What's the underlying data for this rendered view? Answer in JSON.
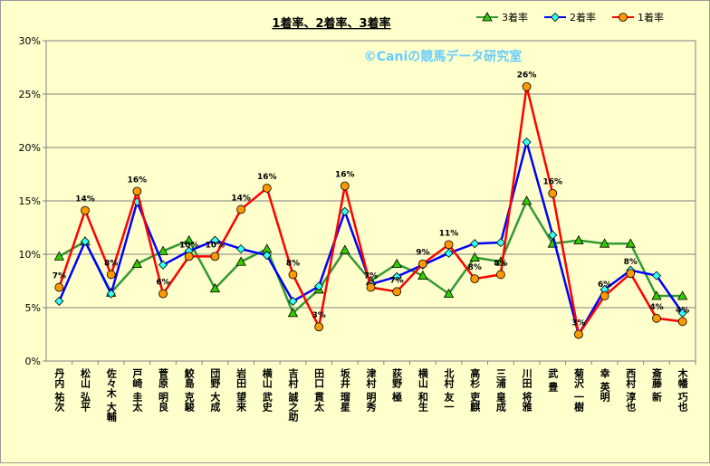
{
  "chart_data": {
    "type": "line",
    "title": "1着率、2着率、3着率",
    "watermark": "©Caniの競馬データ研究室",
    "ylim": [
      0,
      30
    ],
    "yticks": [
      "0%",
      "5%",
      "10%",
      "15%",
      "20%",
      "25%",
      "30%"
    ],
    "categories": [
      "丹内 祐次",
      "松山 弘平",
      "佐々木 大輔",
      "戸崎 圭太",
      "菅原 明良",
      "鮫島 克駿",
      "団野 大成",
      "岩田 望来",
      "横山 武史",
      "吉村 誠之助",
      "田口 貫太",
      "坂井 瑠星",
      "津村 明秀",
      "荻野 極",
      "横山 和生",
      "北村 友一",
      "高杉 吏麒",
      "三浦 皇成",
      "川田 将雅",
      "武 豊",
      "菊沢 一樹",
      "幸 英明",
      "西村 淳也",
      "斎藤 新",
      "木幡 巧也"
    ],
    "series": [
      {
        "name": "3着率",
        "color": "#339933",
        "marker": "triangle",
        "markerColor": "#33cc00",
        "values": [
          9.8,
          11.2,
          6.4,
          9.1,
          10.3,
          11.3,
          6.8,
          9.3,
          10.5,
          4.5,
          6.7,
          10.4,
          7.5,
          9.1,
          8.0,
          6.3,
          9.7,
          9.3,
          15.0,
          11.0,
          11.3,
          11.0,
          11.0,
          6.1,
          6.1
        ]
      },
      {
        "name": "2着率",
        "color": "#0000ff",
        "marker": "diamond",
        "markerColor": "#33ffff",
        "values": [
          5.6,
          11.2,
          6.3,
          14.9,
          9.0,
          10.3,
          11.3,
          10.5,
          9.9,
          5.6,
          7.0,
          14.0,
          7.2,
          7.9,
          9.0,
          10.1,
          11.0,
          11.1,
          20.5,
          11.8,
          2.5,
          6.7,
          8.5,
          8.0,
          4.5
        ]
      },
      {
        "name": "1着率",
        "color": "#ff0000",
        "marker": "circle",
        "markerColor": "#ff9900",
        "values": [
          6.9,
          14.1,
          8.1,
          15.9,
          6.3,
          9.8,
          9.8,
          14.2,
          16.2,
          8.1,
          3.2,
          16.4,
          6.9,
          6.5,
          9.1,
          10.9,
          7.7,
          8.1,
          25.7,
          15.7,
          2.5,
          6.1,
          8.2,
          4.0,
          3.7
        ],
        "labels": [
          "7%",
          "14%",
          "8%",
          "16%",
          "6%",
          "10%",
          "10%",
          "14%",
          "16%",
          "8%",
          "3%",
          "16%",
          "7%",
          "7%",
          "9%",
          "11%",
          "8%",
          "8%",
          "26%",
          "16%",
          "3%",
          "6%",
          "8%",
          "4%",
          "4%"
        ]
      }
    ],
    "legend": "top-right",
    "grid": true
  }
}
